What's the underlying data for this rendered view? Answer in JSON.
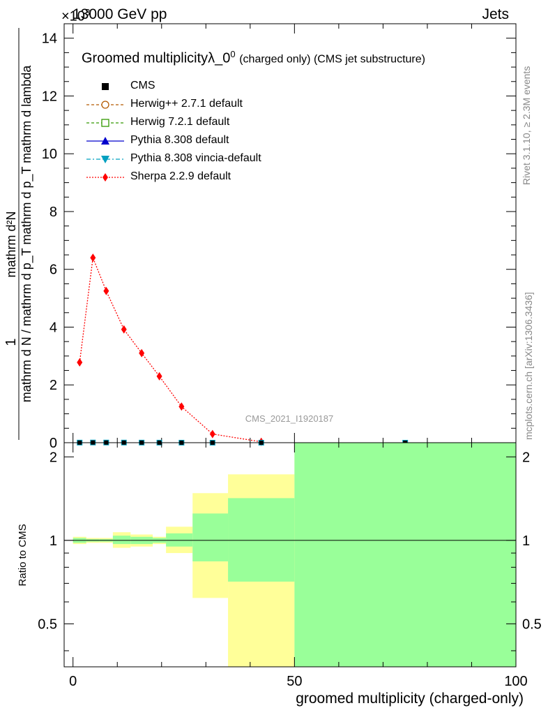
{
  "header": {
    "left": "13000 GeV pp",
    "right": "Jets",
    "exponent": "×10",
    "exponent_power": "3"
  },
  "side_labels": {
    "rivet": "Rivet 3.1.10, ≥ 2.3M events",
    "mcplots": "mcplots.cern.ch [arXiv:1306.3436]"
  },
  "colors": {
    "data": "#000000",
    "herwigpp": "#b35900",
    "herwig7": "#339900",
    "pythia": "#0000cc",
    "vincia": "#00a0c0",
    "sherpa": "#ff0000",
    "band_yellow": "#ffff99",
    "band_green": "#99ff99"
  },
  "chart_data": [
    {
      "type": "line",
      "title": "Groomed multiplicityλ_0⁰ (charged only) (CMS jet substructure)",
      "title_main": "Groomed multiplicityλ_0",
      "title_power": "0",
      "title_suffix": "(charged only) (CMS jet substructure)",
      "ylabel_top": "1",
      "ylabel_numerator": "mathrm d²N",
      "ylabel_denominator": "mathrm d N / mathrm d p_T mathrm d p_T mathrm d lambda",
      "watermark": "CMS_2021_I1920187",
      "xlim": [
        -2,
        100
      ],
      "ylim": [
        0,
        14.5
      ],
      "y_ticks": [
        "0",
        "2",
        "4",
        "6",
        "8",
        "10",
        "12",
        "14"
      ],
      "legend_position": "top-left",
      "legend": [
        "CMS",
        "Herwig++ 2.7.1 default",
        "Herwig 7.2.1 default",
        "Pythia 8.308 default",
        "Pythia 8.308 vincia-default",
        "Sherpa 2.2.9 default"
      ],
      "series": [
        {
          "name": "CMS",
          "marker": "square",
          "x": [
            1.5,
            4.5,
            7.5,
            11.5,
            15.5,
            19.5,
            24.5,
            31.5,
            42.5,
            75
          ],
          "y": [
            0.003,
            0.006,
            0.005,
            0.004,
            0.003,
            0.002,
            0.001,
            0.0003,
            3e-05,
            2e-06
          ]
        },
        {
          "name": "Sherpa 2.2.9 default",
          "marker": "diamond",
          "x": [
            1.5,
            4.5,
            7.5,
            11.5,
            15.5,
            19.5,
            24.5,
            31.5,
            42.5
          ],
          "y": [
            2.78,
            6.4,
            5.25,
            3.92,
            3.1,
            2.3,
            1.25,
            0.3,
            0.03
          ]
        }
      ]
    },
    {
      "type": "area",
      "ylabel": "Ratio to CMS",
      "xlabel": "groomed multiplicity (charged-only)",
      "xlim": [
        -2,
        100
      ],
      "ylim": [
        0.35,
        2.25
      ],
      "x_ticks": [
        "0",
        "50",
        "100"
      ],
      "y_ticks": [
        "0.5",
        "1",
        "2"
      ],
      "bins": [
        {
          "lo": 0,
          "hi": 3,
          "yellow": [
            0.97,
            1.03
          ],
          "green": [
            0.98,
            1.02
          ]
        },
        {
          "lo": 3,
          "hi": 6,
          "yellow": [
            0.98,
            1.02
          ],
          "green": [
            0.99,
            1.01
          ]
        },
        {
          "lo": 6,
          "hi": 9,
          "yellow": [
            0.98,
            1.02
          ],
          "green": [
            0.99,
            1.01
          ]
        },
        {
          "lo": 9,
          "hi": 13,
          "yellow": [
            0.94,
            1.07
          ],
          "green": [
            0.97,
            1.04
          ]
        },
        {
          "lo": 13,
          "hi": 18,
          "yellow": [
            0.95,
            1.05
          ],
          "green": [
            0.97,
            1.03
          ]
        },
        {
          "lo": 18,
          "hi": 21,
          "yellow": [
            0.97,
            1.03
          ],
          "green": [
            0.98,
            1.02
          ]
        },
        {
          "lo": 21,
          "hi": 27,
          "yellow": [
            0.9,
            1.12
          ],
          "green": [
            0.95,
            1.06
          ]
        },
        {
          "lo": 27,
          "hi": 35,
          "yellow": [
            0.62,
            1.48
          ],
          "green": [
            0.84,
            1.25
          ]
        },
        {
          "lo": 35,
          "hi": 50,
          "yellow": [
            0.35,
            1.73
          ],
          "green": [
            0.71,
            1.42
          ]
        },
        {
          "lo": 50,
          "hi": 100,
          "yellow": [
            0.35,
            2.25
          ],
          "green": [
            0.35,
            2.25
          ]
        }
      ]
    }
  ]
}
